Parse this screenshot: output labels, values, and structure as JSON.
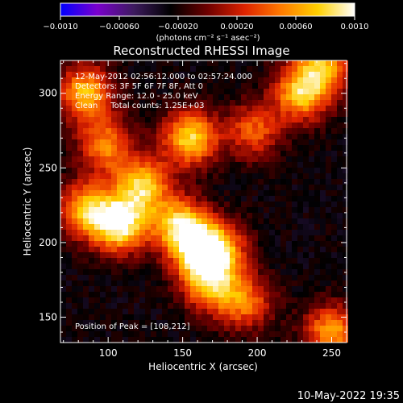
{
  "chart_data": {
    "type": "heatmap",
    "title": "Reconstructed RHESSI Image",
    "xlabel": "Heliocentric X (arcsec)",
    "ylabel": "Heliocentric Y (arcsec)",
    "xlim": [
      68,
      260
    ],
    "ylim": [
      133,
      322
    ],
    "x_ticks": [
      "100",
      "150",
      "200",
      "250"
    ],
    "y_ticks": [
      "150",
      "200",
      "250",
      "300"
    ],
    "colorbar": {
      "range": [
        -0.001,
        0.001
      ],
      "tick_labels": [
        "−0.0010",
        "−0.00060",
        "−0.00020",
        "0.00020",
        "0.00060",
        "0.0010"
      ],
      "units_label": "(photons cm⁻² s⁻¹ asec⁻²)",
      "colors": [
        "#0000ff",
        "#7a00cc",
        "#3d1b5e",
        "#000000",
        "#6e0000",
        "#dd2200",
        "#ff7a00",
        "#ffd000",
        "#ffffff"
      ]
    },
    "annotations": [
      "12-May-2012 02:56:12.000 to 02:57:24.000",
      "Detectors: 3F 5F 6F 7F 8F, Att 0",
      "Energy Range: 12.0 - 25.0 keV",
      "Clean     Total counts: 1.25E+03"
    ],
    "peak_label": "Position of Peak = [108,212]",
    "map_stats": {
      "background_value": -0.00025,
      "peak_value": 0.00095,
      "peak_position": [
        108,
        212
      ]
    },
    "sources": [
      {
        "x": 108,
        "y": 212,
        "value": 0.00095
      },
      {
        "x": 85,
        "y": 222,
        "value": 0.00065
      },
      {
        "x": 123,
        "y": 238,
        "value": 0.00075
      },
      {
        "x": 148,
        "y": 212,
        "value": 0.0007
      },
      {
        "x": 160,
        "y": 195,
        "value": 0.00065
      },
      {
        "x": 168,
        "y": 172,
        "value": 0.0006
      },
      {
        "x": 155,
        "y": 270,
        "value": 0.0008
      },
      {
        "x": 85,
        "y": 300,
        "value": 0.0007
      },
      {
        "x": 98,
        "y": 265,
        "value": 0.0005
      },
      {
        "x": 230,
        "y": 300,
        "value": 0.00075
      },
      {
        "x": 245,
        "y": 320,
        "value": 0.0006
      },
      {
        "x": 192,
        "y": 160,
        "value": 0.00045
      },
      {
        "x": 198,
        "y": 275,
        "value": 0.0004
      },
      {
        "x": 250,
        "y": 140,
        "value": 0.0006
      },
      {
        "x": 175,
        "y": 195,
        "value": 0.00055
      }
    ]
  },
  "timestamp": "10-May-2022 19:35"
}
